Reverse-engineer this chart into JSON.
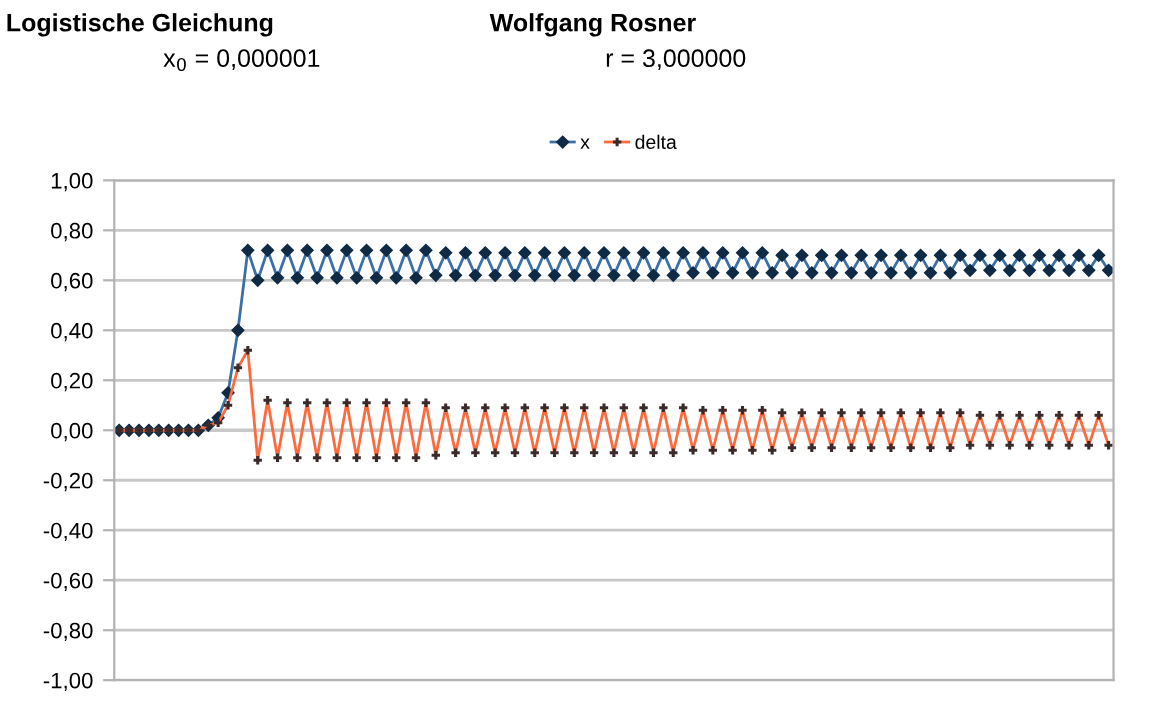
{
  "chart_data": {
    "type": "line",
    "title": "Logistische Gleichung",
    "annotations": [
      "Wolfgang Rosner",
      "x$_{0}$ = 0,000001",
      "r = 3,000000"
    ],
    "categories": [
      null,
      null,
      null,
      null,
      null,
      null,
      null,
      null,
      null,
      null,
      null,
      null,
      null,
      null,
      null,
      null,
      null,
      null,
      null,
      null,
      null,
      null,
      null,
      null,
      null,
      null,
      null,
      null,
      null,
      null,
      null,
      null,
      null,
      null,
      null,
      null,
      null,
      null,
      null,
      null,
      null,
      null,
      null,
      null,
      null,
      null,
      null,
      null,
      null,
      null,
      null,
      null,
      null,
      null,
      null,
      null,
      null,
      null,
      null,
      null,
      null,
      null,
      null,
      null,
      null,
      null,
      null,
      null,
      null,
      null,
      null,
      null,
      null,
      null,
      null,
      null,
      null,
      null,
      null,
      null,
      null,
      null,
      null,
      null,
      null,
      null,
      null,
      null,
      null,
      null,
      null,
      null,
      null,
      null,
      null,
      null,
      null,
      null,
      null,
      null,
      null
    ],
    "series": [
      {
        "name": "x",
        "color": "#3a6fa8",
        "marker": "diamond",
        "values": [
          0,
          0,
          0,
          0,
          0,
          0,
          0,
          0,
          0,
          0.02,
          0.05,
          0.15,
          0.4,
          0.72,
          0.6,
          0.72,
          0.61,
          0.72,
          0.61,
          0.72,
          0.61,
          0.72,
          0.61,
          0.72,
          0.61,
          0.72,
          0.61,
          0.72,
          0.61,
          0.72,
          0.61,
          0.72,
          0.62,
          0.71,
          0.62,
          0.71,
          0.62,
          0.71,
          0.62,
          0.71,
          0.62,
          0.71,
          0.62,
          0.71,
          0.62,
          0.71,
          0.62,
          0.71,
          0.62,
          0.71,
          0.62,
          0.71,
          0.62,
          0.71,
          0.62,
          0.71,
          0.62,
          0.71,
          0.63,
          0.71,
          0.63,
          0.71,
          0.63,
          0.71,
          0.63,
          0.71,
          0.63,
          0.7,
          0.63,
          0.7,
          0.63,
          0.7,
          0.63,
          0.7,
          0.63,
          0.7,
          0.63,
          0.7,
          0.63,
          0.7,
          0.63,
          0.7,
          0.63,
          0.7,
          0.63,
          0.7,
          0.64,
          0.7,
          0.64,
          0.7,
          0.64,
          0.7,
          0.64,
          0.7,
          0.64,
          0.7,
          0.64,
          0.7,
          0.64,
          0.7,
          0.64
        ]
      },
      {
        "name": "delta",
        "color": "#ff6a3d",
        "marker": "cross",
        "values": [
          0,
          0,
          0,
          0,
          0,
          0,
          0,
          0,
          0,
          0.02,
          0.03,
          0.1,
          0.25,
          0.32,
          -0.12,
          0.12,
          -0.11,
          0.11,
          -0.11,
          0.11,
          -0.11,
          0.11,
          -0.11,
          0.11,
          -0.11,
          0.11,
          -0.11,
          0.11,
          -0.11,
          0.11,
          -0.11,
          0.11,
          -0.1,
          0.09,
          -0.09,
          0.09,
          -0.09,
          0.09,
          -0.09,
          0.09,
          -0.09,
          0.09,
          -0.09,
          0.09,
          -0.09,
          0.09,
          -0.09,
          0.09,
          -0.09,
          0.09,
          -0.09,
          0.09,
          -0.09,
          0.09,
          -0.09,
          0.09,
          -0.09,
          0.09,
          -0.08,
          0.08,
          -0.08,
          0.08,
          -0.08,
          0.08,
          -0.08,
          0.08,
          -0.08,
          0.07,
          -0.07,
          0.07,
          -0.07,
          0.07,
          -0.07,
          0.07,
          -0.07,
          0.07,
          -0.07,
          0.07,
          -0.07,
          0.07,
          -0.07,
          0.07,
          -0.07,
          0.07,
          -0.07,
          0.07,
          -0.06,
          0.06,
          -0.06,
          0.06,
          -0.06,
          0.06,
          -0.06,
          0.06,
          -0.06,
          0.06,
          -0.06,
          0.06,
          -0.06,
          0.06,
          -0.06
        ]
      }
    ],
    "ylim": [
      -1,
      1
    ],
    "yticks": [
      {
        "value": -1,
        "label": "-1,00"
      },
      {
        "value": -0.8,
        "label": "-0,80"
      },
      {
        "value": -0.6,
        "label": "-0,60"
      },
      {
        "value": -0.4,
        "label": "-0,40"
      },
      {
        "value": -0.2,
        "label": "-0,20"
      },
      {
        "value": 0,
        "label": "0,00"
      },
      {
        "value": 0.2,
        "label": "0,20"
      },
      {
        "value": 0.4,
        "label": "0,40"
      },
      {
        "value": 0.6,
        "label": "0,60"
      },
      {
        "value": 0.8,
        "label": "0,80"
      },
      {
        "value": 1,
        "label": "1,00"
      }
    ],
    "grid": "y",
    "legend": "top",
    "tick_labels": "y"
  }
}
